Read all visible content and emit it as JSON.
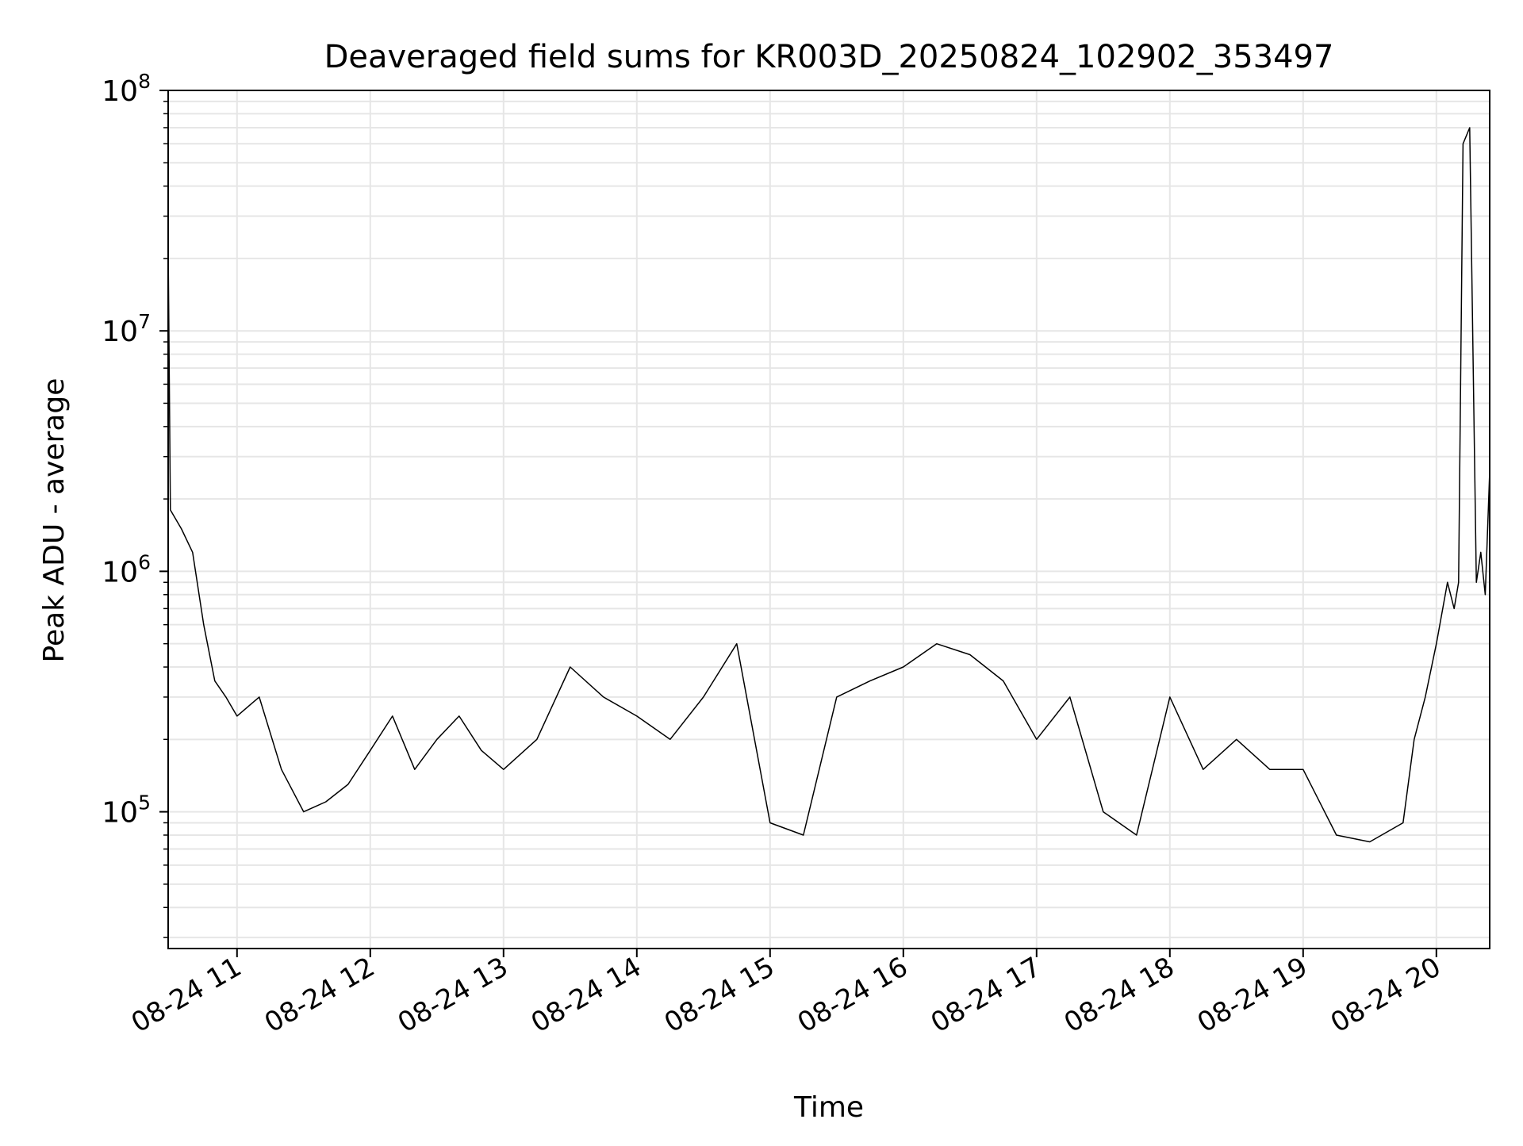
{
  "chart_data": {
    "type": "line",
    "title": "Deaveraged field sums for KR003D_20250824_102902_353497",
    "xlabel": "Time",
    "ylabel": "Peak ADU - average",
    "yscale": "log",
    "ylim": [
      27000,
      100000000
    ],
    "xlim": [
      "2025-08-24 10:29",
      "2025-08-24 20:24"
    ],
    "grid": true,
    "legend": "none",
    "line_color": "#000000",
    "x_ticks": [
      {
        "label": "08-24 11",
        "time": "2025-08-24 11:00"
      },
      {
        "label": "08-24 12",
        "time": "2025-08-24 12:00"
      },
      {
        "label": "08-24 13",
        "time": "2025-08-24 13:00"
      },
      {
        "label": "08-24 14",
        "time": "2025-08-24 14:00"
      },
      {
        "label": "08-24 15",
        "time": "2025-08-24 15:00"
      },
      {
        "label": "08-24 16",
        "time": "2025-08-24 16:00"
      },
      {
        "label": "08-24 17",
        "time": "2025-08-24 17:00"
      },
      {
        "label": "08-24 18",
        "time": "2025-08-24 18:00"
      },
      {
        "label": "08-24 19",
        "time": "2025-08-24 19:00"
      },
      {
        "label": "08-24 20",
        "time": "2025-08-24 20:00"
      }
    ],
    "y_ticks": [
      {
        "base": "10",
        "exp": "5",
        "value": 100000
      },
      {
        "base": "10",
        "exp": "6",
        "value": 1000000
      },
      {
        "base": "10",
        "exp": "7",
        "value": 10000000
      },
      {
        "base": "10",
        "exp": "8",
        "value": 100000000
      }
    ],
    "series": [
      {
        "x": [
          "2025-08-24 10:29",
          "2025-08-24 10:30",
          "2025-08-24 10:35",
          "2025-08-24 10:40",
          "2025-08-24 10:45",
          "2025-08-24 10:50",
          "2025-08-24 10:55",
          "2025-08-24 11:00",
          "2025-08-24 11:10",
          "2025-08-24 11:20",
          "2025-08-24 11:30",
          "2025-08-24 11:40",
          "2025-08-24 11:50",
          "2025-08-24 12:00",
          "2025-08-24 12:10",
          "2025-08-24 12:20",
          "2025-08-24 12:30",
          "2025-08-24 12:40",
          "2025-08-24 12:50",
          "2025-08-24 13:00",
          "2025-08-24 13:15",
          "2025-08-24 13:30",
          "2025-08-24 13:45",
          "2025-08-24 14:00",
          "2025-08-24 14:15",
          "2025-08-24 14:30",
          "2025-08-24 14:45",
          "2025-08-24 15:00",
          "2025-08-24 15:15",
          "2025-08-24 15:30",
          "2025-08-24 15:45",
          "2025-08-24 16:00",
          "2025-08-24 16:15",
          "2025-08-24 16:30",
          "2025-08-24 16:45",
          "2025-08-24 17:00",
          "2025-08-24 17:15",
          "2025-08-24 17:30",
          "2025-08-24 17:45",
          "2025-08-24 18:00",
          "2025-08-24 18:15",
          "2025-08-24 18:30",
          "2025-08-24 18:45",
          "2025-08-24 19:00",
          "2025-08-24 19:15",
          "2025-08-24 19:30",
          "2025-08-24 19:45",
          "2025-08-24 19:50",
          "2025-08-24 19:55",
          "2025-08-24 20:00",
          "2025-08-24 20:05",
          "2025-08-24 20:08",
          "2025-08-24 20:10",
          "2025-08-24 20:12",
          "2025-08-24 20:15",
          "2025-08-24 20:18",
          "2025-08-24 20:20",
          "2025-08-24 20:22",
          "2025-08-24 20:24"
        ],
        "values": [
          23000000,
          1800000,
          1500000,
          1200000,
          600000,
          350000,
          300000,
          250000,
          300000,
          150000,
          100000,
          110000,
          130000,
          180000,
          250000,
          150000,
          200000,
          250000,
          180000,
          150000,
          200000,
          400000,
          300000,
          250000,
          200000,
          300000,
          500000,
          90000,
          80000,
          300000,
          350000,
          400000,
          500000,
          450000,
          350000,
          200000,
          300000,
          100000,
          80000,
          300000,
          150000,
          200000,
          150000,
          150000,
          80000,
          75000,
          90000,
          200000,
          300000,
          500000,
          900000,
          700000,
          900000,
          60000000,
          70000000,
          900000,
          1200000,
          800000,
          2600000
        ]
      }
    ]
  }
}
